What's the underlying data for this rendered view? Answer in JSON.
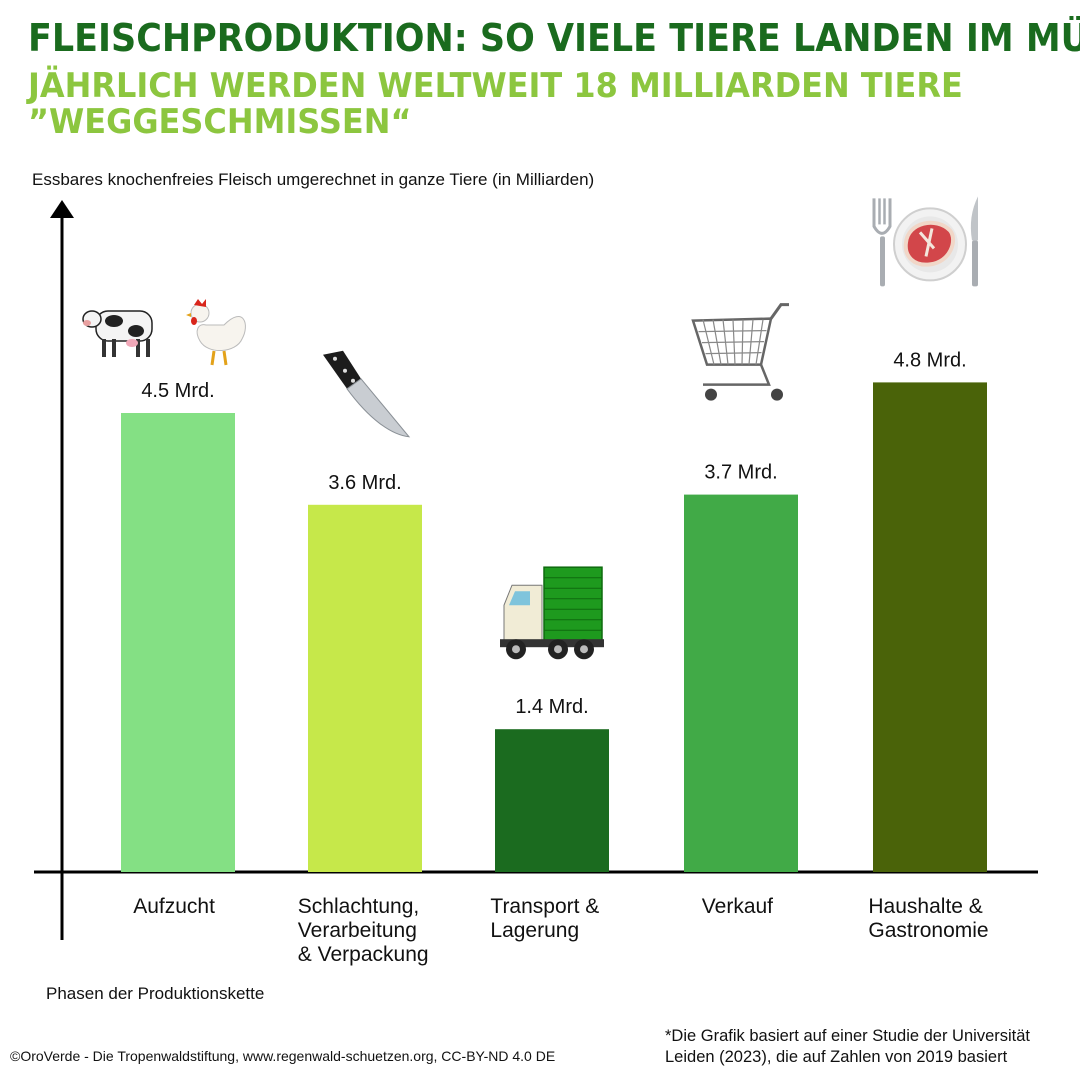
{
  "header": {
    "title": "FLEISCHPRODUKTION: SO VIELE TIERE LANDEN IM MÜLL",
    "subtitle": "JÄHRLICH WERDEN WELTWEIT 18 MILLIARDEN TIERE ”WEGGESCHMISSEN“"
  },
  "chart_data": {
    "type": "bar",
    "ylabel": "Essbares knochenfreies Fleisch umgerechnet in ganze Tiere (in Milliarden)",
    "xlabel": "Phasen der Produktionskette",
    "ylim": [
      0,
      6
    ],
    "grid": false,
    "categories": [
      [
        "Aufzucht"
      ],
      [
        "Schlachtung,",
        "Verarbeitung",
        "& Verpackung"
      ],
      [
        "Transport &",
        "Lagerung"
      ],
      [
        "Verkauf"
      ],
      [
        "Haushalte &",
        "Gastronomie"
      ]
    ],
    "values": [
      4.5,
      3.6,
      1.4,
      3.7,
      4.8
    ],
    "value_labels": [
      "4.5 Mrd.",
      "3.6 Mrd.",
      "1.4 Mrd.",
      "3.7 Mrd.",
      "4.8 Mrd."
    ],
    "colors": [
      "#84e084",
      "#c6e84a",
      "#1b6b1f",
      "#41aa47",
      "#4a6309"
    ],
    "icons": [
      "cow-chicken-icon",
      "knife-icon",
      "truck-icon",
      "shopping-cart-icon",
      "plate-steak-icon"
    ]
  },
  "footer": {
    "credit": "©OroVerde - Die Tropenwaldstiftung, www.regenwald-schuetzen.org, CC-BY-ND 4.0 DE",
    "note": "*Die Grafik basiert auf einer Studie der Universität Leiden (2023), die auf Zahlen von 2019 basiert"
  }
}
